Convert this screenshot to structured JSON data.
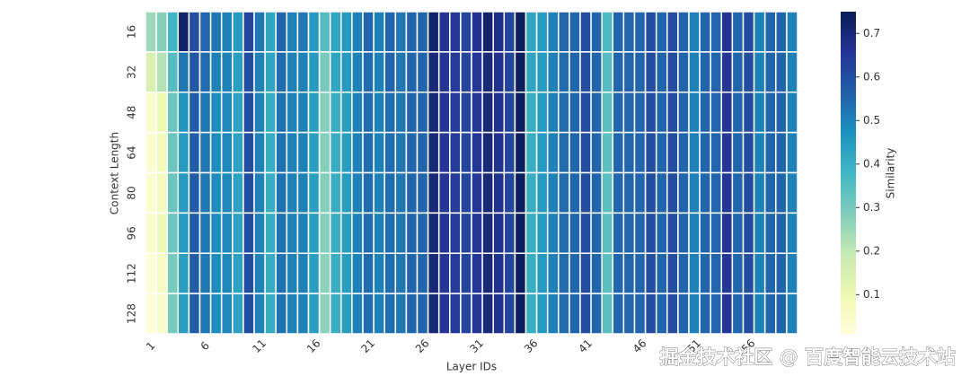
{
  "chart_data": {
    "type": "heatmap",
    "xlabel": "Layer IDs",
    "ylabel": "Context Length",
    "colorbar_label": "Similarity",
    "colormap": "YlGnBu",
    "clim": [
      0.01,
      0.75
    ],
    "cticks": [
      0.1,
      0.2,
      0.3,
      0.4,
      0.5,
      0.6,
      0.7
    ],
    "x_categories": [
      1,
      null,
      null,
      null,
      null,
      6,
      null,
      null,
      null,
      null,
      11,
      null,
      null,
      null,
      null,
      16,
      null,
      null,
      null,
      null,
      21,
      null,
      null,
      null,
      null,
      26,
      null,
      null,
      null,
      null,
      31,
      null,
      null,
      null,
      null,
      36,
      null,
      null,
      null,
      null,
      41,
      null,
      null,
      null,
      null,
      46,
      null,
      null,
      null,
      null,
      51,
      null,
      null,
      null,
      null,
      56,
      null,
      null,
      null,
      null
    ],
    "y_categories": [
      16,
      32,
      48,
      64,
      80,
      96,
      112,
      128
    ],
    "values": [
      [
        0.25,
        0.28,
        0.38,
        0.72,
        0.6,
        0.55,
        0.52,
        0.5,
        0.45,
        0.62,
        0.52,
        0.42,
        0.55,
        0.5,
        0.52,
        0.45,
        0.35,
        0.42,
        0.45,
        0.5,
        0.55,
        0.5,
        0.55,
        0.52,
        0.55,
        0.55,
        0.72,
        0.66,
        0.65,
        0.62,
        0.66,
        0.72,
        0.68,
        0.62,
        0.74,
        0.42,
        0.45,
        0.5,
        0.55,
        0.55,
        0.6,
        0.55,
        0.36,
        0.55,
        0.55,
        0.55,
        0.6,
        0.55,
        0.6,
        0.55,
        0.5,
        0.55,
        0.55,
        0.66,
        0.55,
        0.6,
        0.5,
        0.55,
        0.55,
        0.5
      ],
      [
        0.15,
        0.22,
        0.35,
        0.52,
        0.58,
        0.54,
        0.5,
        0.5,
        0.44,
        0.6,
        0.5,
        0.42,
        0.54,
        0.5,
        0.5,
        0.45,
        0.3,
        0.42,
        0.45,
        0.5,
        0.54,
        0.5,
        0.55,
        0.52,
        0.55,
        0.55,
        0.7,
        0.65,
        0.64,
        0.62,
        0.65,
        0.7,
        0.67,
        0.62,
        0.74,
        0.42,
        0.45,
        0.5,
        0.54,
        0.55,
        0.6,
        0.55,
        0.35,
        0.55,
        0.55,
        0.55,
        0.6,
        0.55,
        0.6,
        0.55,
        0.5,
        0.55,
        0.55,
        0.65,
        0.55,
        0.6,
        0.5,
        0.55,
        0.55,
        0.5
      ],
      [
        0.04,
        0.1,
        0.32,
        0.46,
        0.57,
        0.52,
        0.48,
        0.49,
        0.43,
        0.6,
        0.5,
        0.4,
        0.53,
        0.5,
        0.5,
        0.44,
        0.28,
        0.4,
        0.44,
        0.5,
        0.54,
        0.5,
        0.54,
        0.52,
        0.55,
        0.55,
        0.7,
        0.65,
        0.64,
        0.62,
        0.65,
        0.7,
        0.67,
        0.62,
        0.74,
        0.4,
        0.45,
        0.5,
        0.54,
        0.55,
        0.6,
        0.55,
        0.34,
        0.55,
        0.55,
        0.55,
        0.6,
        0.55,
        0.6,
        0.55,
        0.5,
        0.55,
        0.55,
        0.65,
        0.55,
        0.6,
        0.5,
        0.55,
        0.55,
        0.5
      ],
      [
        0.03,
        0.08,
        0.32,
        0.45,
        0.57,
        0.52,
        0.48,
        0.49,
        0.43,
        0.6,
        0.5,
        0.4,
        0.53,
        0.5,
        0.5,
        0.44,
        0.28,
        0.4,
        0.44,
        0.5,
        0.54,
        0.5,
        0.54,
        0.52,
        0.55,
        0.55,
        0.7,
        0.65,
        0.64,
        0.62,
        0.65,
        0.7,
        0.67,
        0.62,
        0.74,
        0.4,
        0.45,
        0.5,
        0.54,
        0.55,
        0.6,
        0.55,
        0.34,
        0.55,
        0.55,
        0.55,
        0.6,
        0.55,
        0.6,
        0.55,
        0.5,
        0.55,
        0.55,
        0.65,
        0.55,
        0.6,
        0.5,
        0.55,
        0.55,
        0.5
      ],
      [
        0.03,
        0.07,
        0.32,
        0.45,
        0.57,
        0.52,
        0.48,
        0.49,
        0.43,
        0.6,
        0.5,
        0.4,
        0.53,
        0.5,
        0.5,
        0.44,
        0.28,
        0.4,
        0.44,
        0.5,
        0.54,
        0.5,
        0.54,
        0.52,
        0.55,
        0.55,
        0.7,
        0.65,
        0.64,
        0.62,
        0.65,
        0.7,
        0.67,
        0.62,
        0.74,
        0.4,
        0.45,
        0.5,
        0.54,
        0.55,
        0.6,
        0.55,
        0.34,
        0.55,
        0.55,
        0.55,
        0.6,
        0.55,
        0.6,
        0.55,
        0.5,
        0.55,
        0.55,
        0.65,
        0.55,
        0.6,
        0.5,
        0.55,
        0.55,
        0.5
      ],
      [
        0.04,
        0.09,
        0.32,
        0.45,
        0.57,
        0.52,
        0.48,
        0.49,
        0.43,
        0.6,
        0.5,
        0.4,
        0.53,
        0.5,
        0.5,
        0.44,
        0.28,
        0.4,
        0.44,
        0.5,
        0.54,
        0.5,
        0.54,
        0.52,
        0.55,
        0.55,
        0.7,
        0.65,
        0.64,
        0.62,
        0.65,
        0.7,
        0.67,
        0.62,
        0.74,
        0.4,
        0.45,
        0.5,
        0.54,
        0.55,
        0.6,
        0.55,
        0.34,
        0.55,
        0.55,
        0.55,
        0.6,
        0.55,
        0.6,
        0.55,
        0.5,
        0.55,
        0.55,
        0.65,
        0.55,
        0.6,
        0.5,
        0.55,
        0.55,
        0.5
      ],
      [
        0.02,
        0.06,
        0.3,
        0.44,
        0.57,
        0.52,
        0.48,
        0.49,
        0.43,
        0.6,
        0.5,
        0.4,
        0.53,
        0.5,
        0.5,
        0.44,
        0.27,
        0.4,
        0.44,
        0.5,
        0.54,
        0.5,
        0.54,
        0.52,
        0.55,
        0.55,
        0.7,
        0.65,
        0.64,
        0.62,
        0.65,
        0.7,
        0.67,
        0.62,
        0.74,
        0.4,
        0.45,
        0.5,
        0.54,
        0.55,
        0.6,
        0.55,
        0.34,
        0.55,
        0.55,
        0.55,
        0.6,
        0.55,
        0.6,
        0.55,
        0.5,
        0.55,
        0.55,
        0.65,
        0.55,
        0.6,
        0.5,
        0.55,
        0.55,
        0.5
      ],
      [
        0.02,
        0.05,
        0.3,
        0.44,
        0.57,
        0.52,
        0.48,
        0.49,
        0.43,
        0.6,
        0.5,
        0.4,
        0.53,
        0.5,
        0.5,
        0.44,
        0.27,
        0.4,
        0.44,
        0.5,
        0.54,
        0.5,
        0.54,
        0.52,
        0.55,
        0.55,
        0.7,
        0.65,
        0.64,
        0.62,
        0.65,
        0.7,
        0.67,
        0.62,
        0.74,
        0.4,
        0.45,
        0.5,
        0.54,
        0.55,
        0.6,
        0.55,
        0.34,
        0.55,
        0.55,
        0.55,
        0.6,
        0.55,
        0.6,
        0.55,
        0.5,
        0.55,
        0.55,
        0.65,
        0.55,
        0.6,
        0.5,
        0.55,
        0.55,
        0.5
      ]
    ],
    "watermark": "掘金技术社区 @ 百度智能云技术站"
  }
}
